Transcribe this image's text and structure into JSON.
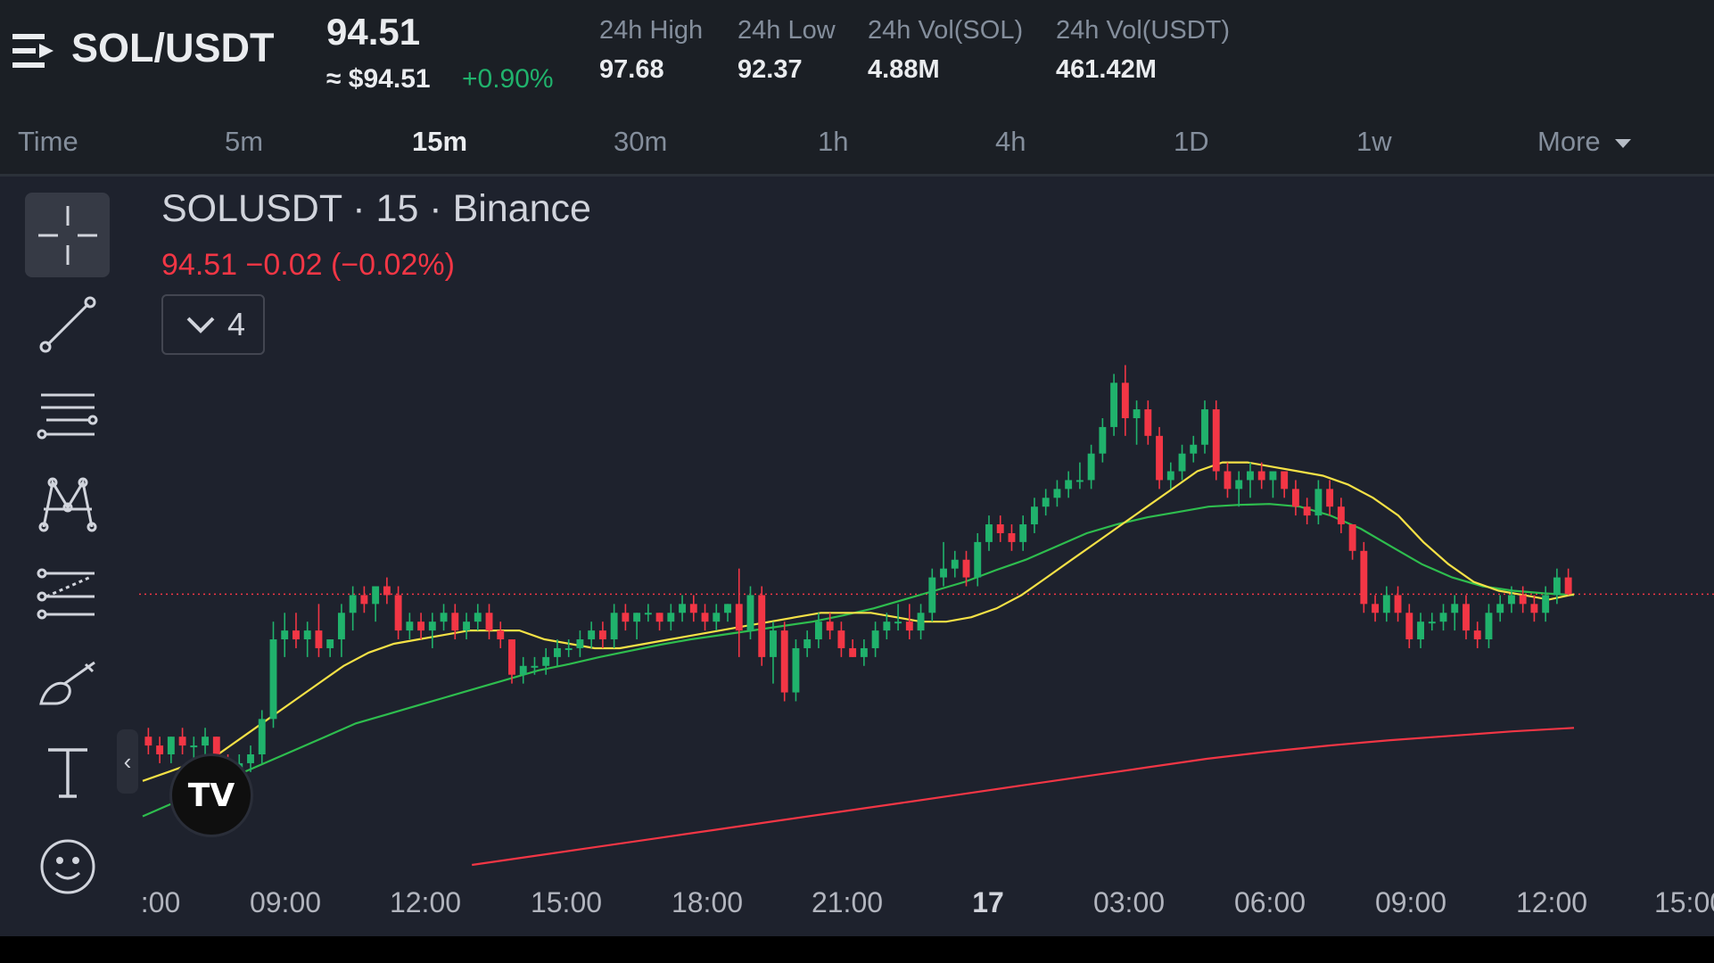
{
  "header": {
    "menu_icon": "menu-icon",
    "pair": "SOL/USDT",
    "last_price": "94.51",
    "approx_price": "≈ $94.51",
    "change_pct": "+0.90%",
    "stats": [
      {
        "label": "24h High",
        "value": "97.68"
      },
      {
        "label": "24h Low",
        "value": "92.37"
      },
      {
        "label": "24h Vol(SOL)",
        "value": "4.88M"
      },
      {
        "label": "24h Vol(USDT)",
        "value": "461.42M"
      }
    ]
  },
  "tabs": [
    {
      "label": "Time"
    },
    {
      "label": "5m"
    },
    {
      "label": "15m",
      "active": true
    },
    {
      "label": "30m"
    },
    {
      "label": "1h"
    },
    {
      "label": "4h"
    },
    {
      "label": "1D"
    },
    {
      "label": "1w"
    },
    {
      "label": "More"
    }
  ],
  "toolbar": {
    "tools": [
      "crosshair-icon",
      "trend-line-icon",
      "fib-retracement-icon",
      "pattern-icon",
      "prediction-icon",
      "brush-icon",
      "text-icon",
      "emoji-icon"
    ]
  },
  "legend": {
    "title": "SOLUSDT · 15 · Binance",
    "ohlc": "94.51  −0.02 (−0.02%)",
    "indicator_count": "4"
  },
  "handle": "‹",
  "logo_text": "TV",
  "colors": {
    "up": "#20b26c",
    "down": "#f23645",
    "ma_short": "#f5e146",
    "ma_mid": "#2ebd4e",
    "ma_long": "#f23645",
    "background": "#1e222d"
  },
  "time_axis": [
    ":00",
    "09:00",
    "12:00",
    "15:00",
    "18:00",
    "21:00",
    "17",
    "03:00",
    "06:00",
    "09:00",
    "12:00",
    "15:00"
  ],
  "chart_data": {
    "type": "candlestick",
    "symbol": "SOLUSDT",
    "interval": "15",
    "last_price": 94.51,
    "series": [
      {
        "name": "price",
        "ohlc": [
          [
            92.9,
            93.0,
            92.7,
            92.8
          ],
          [
            92.8,
            92.9,
            92.6,
            92.7
          ],
          [
            92.7,
            92.9,
            92.6,
            92.9
          ],
          [
            92.9,
            93.0,
            92.7,
            92.8
          ],
          [
            92.8,
            92.9,
            92.6,
            92.8
          ],
          [
            92.8,
            93.0,
            92.7,
            92.9
          ],
          [
            92.9,
            92.9,
            92.5,
            92.6
          ],
          [
            92.6,
            92.7,
            92.4,
            92.5
          ],
          [
            92.5,
            92.7,
            92.4,
            92.6
          ],
          [
            92.6,
            92.8,
            92.5,
            92.7
          ],
          [
            92.7,
            93.2,
            92.6,
            93.1
          ],
          [
            93.1,
            94.2,
            93.0,
            94.0
          ],
          [
            94.0,
            94.3,
            93.8,
            94.1
          ],
          [
            94.1,
            94.3,
            93.9,
            94.0
          ],
          [
            94.0,
            94.2,
            93.8,
            94.1
          ],
          [
            94.1,
            94.4,
            93.8,
            93.9
          ],
          [
            93.9,
            94.0,
            93.8,
            94.0
          ],
          [
            94.0,
            94.4,
            93.8,
            94.3
          ],
          [
            94.3,
            94.6,
            94.1,
            94.5
          ],
          [
            94.5,
            94.6,
            94.3,
            94.4
          ],
          [
            94.4,
            94.6,
            94.2,
            94.6
          ],
          [
            94.6,
            94.7,
            94.4,
            94.5
          ],
          [
            94.5,
            94.6,
            94.0,
            94.1
          ],
          [
            94.1,
            94.3,
            94.0,
            94.2
          ],
          [
            94.2,
            94.3,
            94.0,
            94.1
          ],
          [
            94.1,
            94.3,
            93.9,
            94.2
          ],
          [
            94.2,
            94.4,
            94.1,
            94.3
          ],
          [
            94.3,
            94.4,
            94.0,
            94.1
          ],
          [
            94.1,
            94.3,
            94.0,
            94.2
          ],
          [
            94.2,
            94.4,
            94.1,
            94.3
          ],
          [
            94.3,
            94.4,
            94.0,
            94.1
          ],
          [
            94.1,
            94.2,
            93.9,
            94.0
          ],
          [
            94.0,
            94.0,
            93.5,
            93.6
          ],
          [
            93.6,
            93.8,
            93.5,
            93.7
          ],
          [
            93.7,
            93.8,
            93.6,
            93.7
          ],
          [
            93.7,
            93.9,
            93.6,
            93.8
          ],
          [
            93.8,
            94.0,
            93.7,
            93.9
          ],
          [
            93.9,
            94.0,
            93.8,
            93.9
          ],
          [
            93.9,
            94.1,
            93.8,
            94.0
          ],
          [
            94.0,
            94.2,
            93.9,
            94.1
          ],
          [
            94.1,
            94.2,
            93.9,
            94.0
          ],
          [
            94.0,
            94.4,
            93.9,
            94.3
          ],
          [
            94.3,
            94.4,
            94.1,
            94.2
          ],
          [
            94.2,
            94.3,
            94.0,
            94.3
          ],
          [
            94.3,
            94.4,
            94.2,
            94.3
          ],
          [
            94.3,
            94.3,
            94.1,
            94.2
          ],
          [
            94.2,
            94.4,
            94.1,
            94.3
          ],
          [
            94.3,
            94.5,
            94.2,
            94.4
          ],
          [
            94.4,
            94.5,
            94.2,
            94.3
          ],
          [
            94.3,
            94.4,
            94.1,
            94.2
          ],
          [
            94.2,
            94.4,
            94.1,
            94.3
          ],
          [
            94.3,
            94.4,
            94.2,
            94.4
          ],
          [
            94.4,
            94.8,
            93.8,
            94.1
          ],
          [
            94.1,
            94.6,
            94.0,
            94.5
          ],
          [
            94.5,
            94.6,
            93.7,
            93.8
          ],
          [
            93.8,
            94.2,
            93.5,
            94.1
          ],
          [
            94.1,
            94.2,
            93.3,
            93.4
          ],
          [
            93.4,
            94.0,
            93.3,
            93.9
          ],
          [
            93.9,
            94.1,
            93.8,
            94.0
          ],
          [
            94.0,
            94.3,
            93.9,
            94.2
          ],
          [
            94.2,
            94.3,
            94.0,
            94.1
          ],
          [
            94.1,
            94.2,
            93.8,
            93.9
          ],
          [
            93.9,
            94.0,
            93.8,
            93.8
          ],
          [
            93.8,
            94.0,
            93.7,
            93.9
          ],
          [
            93.9,
            94.2,
            93.8,
            94.1
          ],
          [
            94.1,
            94.3,
            94.0,
            94.2
          ],
          [
            94.2,
            94.4,
            94.1,
            94.2
          ],
          [
            94.2,
            94.4,
            94.0,
            94.1
          ],
          [
            94.1,
            94.4,
            94.0,
            94.3
          ],
          [
            94.3,
            94.8,
            94.2,
            94.7
          ],
          [
            94.7,
            95.1,
            94.6,
            94.8
          ],
          [
            94.8,
            95.0,
            94.7,
            94.9
          ],
          [
            94.9,
            95.0,
            94.6,
            94.7
          ],
          [
            94.7,
            95.2,
            94.6,
            95.1
          ],
          [
            95.1,
            95.4,
            95.0,
            95.3
          ],
          [
            95.3,
            95.4,
            95.1,
            95.2
          ],
          [
            95.2,
            95.3,
            95.0,
            95.1
          ],
          [
            95.1,
            95.4,
            95.0,
            95.3
          ],
          [
            95.3,
            95.6,
            95.2,
            95.5
          ],
          [
            95.5,
            95.7,
            95.4,
            95.6
          ],
          [
            95.6,
            95.8,
            95.5,
            95.7
          ],
          [
            95.7,
            95.9,
            95.6,
            95.8
          ],
          [
            95.8,
            96.0,
            95.7,
            95.8
          ],
          [
            95.8,
            96.2,
            95.7,
            96.1
          ],
          [
            96.1,
            96.5,
            96.0,
            96.4
          ],
          [
            96.4,
            97.0,
            96.3,
            96.9
          ],
          [
            96.9,
            97.1,
            96.3,
            96.5
          ],
          [
            96.5,
            96.7,
            96.2,
            96.6
          ],
          [
            96.6,
            96.7,
            96.2,
            96.3
          ],
          [
            96.3,
            96.4,
            95.7,
            95.8
          ],
          [
            95.8,
            96.0,
            95.7,
            95.9
          ],
          [
            95.9,
            96.2,
            95.8,
            96.1
          ],
          [
            96.1,
            96.3,
            96.0,
            96.2
          ],
          [
            96.2,
            96.7,
            96.1,
            96.6
          ],
          [
            96.6,
            96.7,
            95.8,
            95.9
          ],
          [
            95.9,
            96.0,
            95.6,
            95.7
          ],
          [
            95.7,
            95.9,
            95.5,
            95.8
          ],
          [
            95.8,
            96.0,
            95.6,
            95.9
          ],
          [
            95.9,
            96.0,
            95.7,
            95.8
          ],
          [
            95.8,
            95.9,
            95.6,
            95.9
          ],
          [
            95.9,
            95.9,
            95.6,
            95.7
          ],
          [
            95.7,
            95.8,
            95.4,
            95.5
          ],
          [
            95.5,
            95.6,
            95.3,
            95.4
          ],
          [
            95.4,
            95.8,
            95.3,
            95.7
          ],
          [
            95.7,
            95.8,
            95.4,
            95.5
          ],
          [
            95.5,
            95.6,
            95.2,
            95.3
          ],
          [
            95.3,
            95.3,
            94.9,
            95.0
          ],
          [
            95.0,
            95.1,
            94.3,
            94.4
          ],
          [
            94.4,
            94.5,
            94.2,
            94.3
          ],
          [
            94.3,
            94.6,
            94.2,
            94.5
          ],
          [
            94.5,
            94.6,
            94.2,
            94.3
          ],
          [
            94.3,
            94.4,
            93.9,
            94.0
          ],
          [
            94.0,
            94.3,
            93.9,
            94.2
          ],
          [
            94.2,
            94.3,
            94.1,
            94.2
          ],
          [
            94.2,
            94.4,
            94.1,
            94.3
          ],
          [
            94.3,
            94.5,
            94.1,
            94.4
          ],
          [
            94.4,
            94.5,
            94.0,
            94.1
          ],
          [
            94.1,
            94.2,
            93.9,
            94.0
          ],
          [
            94.0,
            94.4,
            93.9,
            94.3
          ],
          [
            94.3,
            94.5,
            94.2,
            94.4
          ],
          [
            94.4,
            94.6,
            94.3,
            94.5
          ],
          [
            94.5,
            94.6,
            94.3,
            94.4
          ],
          [
            94.4,
            94.5,
            94.2,
            94.3
          ],
          [
            94.3,
            94.6,
            94.2,
            94.5
          ],
          [
            94.5,
            94.8,
            94.4,
            94.7
          ],
          [
            94.7,
            94.8,
            94.5,
            94.51
          ]
        ]
      },
      {
        "name": "MA short",
        "x_start": 0,
        "values": [
          92.4,
          92.5,
          92.6,
          92.7,
          92.9,
          93.1,
          93.3,
          93.5,
          93.7,
          93.85,
          93.95,
          94.0,
          94.05,
          94.1,
          94.1,
          94.1,
          94.0,
          93.95,
          93.9,
          93.9,
          93.95,
          94.0,
          94.05,
          94.1,
          94.15,
          94.2,
          94.25,
          94.3,
          94.3,
          94.3,
          94.25,
          94.2,
          94.2,
          94.25,
          94.35,
          94.5,
          94.7,
          94.9,
          95.1,
          95.3,
          95.5,
          95.7,
          95.9,
          96.0,
          96.0,
          95.95,
          95.9,
          95.85,
          95.75,
          95.6,
          95.4,
          95.1,
          94.85,
          94.65,
          94.55,
          94.5,
          94.45,
          94.51
        ]
      },
      {
        "name": "MA mid",
        "x_start": 0,
        "values": [
          92.0,
          92.15,
          92.3,
          92.45,
          92.6,
          92.75,
          92.9,
          93.05,
          93.15,
          93.25,
          93.35,
          93.45,
          93.55,
          93.65,
          93.72,
          93.8,
          93.87,
          93.94,
          94.0,
          94.05,
          94.1,
          94.15,
          94.2,
          94.27,
          94.35,
          94.45,
          94.55,
          94.65,
          94.78,
          94.9,
          95.05,
          95.2,
          95.3,
          95.38,
          95.44,
          95.5,
          95.52,
          95.53,
          95.5,
          95.4,
          95.25,
          95.05,
          94.85,
          94.7,
          94.6,
          94.55,
          94.52,
          94.5
        ]
      },
      {
        "name": "MA long",
        "x_start": 0,
        "values": [
          91.45,
          91.55,
          91.65,
          91.75,
          91.85,
          91.95,
          92.05,
          92.15,
          92.25,
          92.35,
          92.45,
          92.55,
          92.65,
          92.73,
          92.8,
          92.86,
          92.91,
          92.96,
          93.0
        ]
      }
    ],
    "y_range": [
      91.4,
      97.8
    ],
    "x_labels": [
      ":00",
      "09:00",
      "12:00",
      "15:00",
      "18:00",
      "21:00",
      "17",
      "03:00",
      "06:00",
      "09:00",
      "12:00",
      "15:00"
    ],
    "last_price_line": 94.51
  }
}
